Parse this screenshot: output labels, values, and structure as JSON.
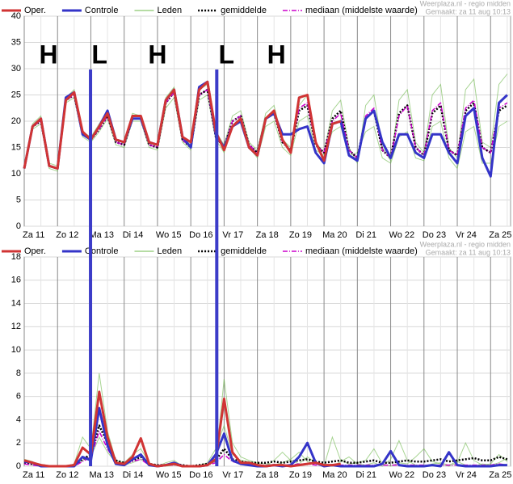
{
  "front_lines": {
    "color": "#3c3cc8",
    "x": [
      1.99,
      5.78
    ]
  },
  "chart_data": [
    {
      "type": "line",
      "watermark": [
        "Weerplaza.nl - regio midden",
        "Gemaakt: za 11 aug 10:13"
      ],
      "annotations": [
        {
          "text": "H",
          "x": 0.73,
          "y": 32.3
        },
        {
          "text": "L",
          "x": 2.26,
          "y": 32.3
        },
        {
          "text": "H",
          "x": 4.0,
          "y": 32.3
        },
        {
          "text": "L",
          "x": 6.07,
          "y": 32.3
        },
        {
          "text": "H",
          "x": 7.57,
          "y": 32.3
        }
      ],
      "x": [
        0,
        0.25,
        0.5,
        0.75,
        1,
        1.25,
        1.5,
        1.75,
        2,
        2.25,
        2.5,
        2.75,
        3,
        3.25,
        3.5,
        3.75,
        4,
        4.25,
        4.5,
        4.75,
        5,
        5.25,
        5.5,
        5.75,
        6,
        6.25,
        6.5,
        6.75,
        7,
        7.25,
        7.5,
        7.75,
        8,
        8.25,
        8.5,
        8.75,
        9,
        9.25,
        9.5,
        9.75,
        10,
        10.25,
        10.5,
        10.75,
        11,
        11.25,
        11.5,
        11.75,
        12,
        12.25,
        12.5,
        12.75,
        13,
        13.25,
        13.5,
        13.75,
        14,
        14.25,
        14.5
      ],
      "xlim": [
        0,
        14.6
      ],
      "xticks": [
        {
          "value": 0,
          "label": "Za 11"
        },
        {
          "value": 1,
          "label": "Zo 12"
        },
        {
          "value": 2,
          "label": "Ma 13"
        },
        {
          "value": 3,
          "label": "Di 14"
        },
        {
          "value": 4,
          "label": "Wo 15"
        },
        {
          "value": 5,
          "label": "Do 16"
        },
        {
          "value": 6,
          "label": "Vr 17"
        },
        {
          "value": 7,
          "label": "Za 18"
        },
        {
          "value": 8,
          "label": "Zo 19"
        },
        {
          "value": 9,
          "label": "Ma 20"
        },
        {
          "value": 10,
          "label": "Di 21"
        },
        {
          "value": 11,
          "label": "Wo 22"
        },
        {
          "value": 12,
          "label": "Do 23"
        },
        {
          "value": 13,
          "label": "Vr 24"
        },
        {
          "value": 14,
          "label": "Za 25"
        }
      ],
      "ylim": [
        0,
        40
      ],
      "yticks": [
        0,
        5,
        10,
        15,
        20,
        25,
        30,
        35,
        40
      ],
      "grid": true,
      "series": [
        {
          "name": "Oper.",
          "color": "#d03434",
          "values": [
            11,
            19,
            20.5,
            11.5,
            11,
            24,
            25.5,
            18,
            16.5,
            19,
            21.5,
            16.5,
            16,
            21,
            21,
            16,
            15.5,
            24,
            26,
            17,
            16,
            26,
            27.5,
            18,
            14.5,
            19,
            20.5,
            15,
            13.5,
            20.5,
            22,
            16.5,
            14,
            24.5,
            25,
            16,
            12.5,
            19.5,
            20,
            null,
            null,
            null,
            null,
            null,
            null,
            null,
            null,
            null,
            null,
            null,
            null,
            null,
            null,
            null,
            null,
            null,
            null,
            null,
            null
          ]
        },
        {
          "name": "Controle",
          "color": "#3434c8",
          "values": [
            11,
            19,
            20.5,
            11.5,
            11,
            24.5,
            25.5,
            17.5,
            16.5,
            19,
            22,
            16.5,
            16,
            20.5,
            20.5,
            16,
            15.5,
            24,
            26,
            17,
            15,
            26.5,
            27.5,
            17.5,
            15,
            19,
            20,
            15,
            13.5,
            20.5,
            21.5,
            17.5,
            17.5,
            18.5,
            19,
            14,
            12,
            19.5,
            20,
            13.5,
            12.5,
            20.5,
            22,
            16,
            13,
            17.5,
            17.5,
            14,
            13,
            17.5,
            17.5,
            14,
            12,
            21,
            22.5,
            13,
            9.5,
            23.5,
            25
          ]
        },
        {
          "name": "Leden",
          "color": "#6cb84a",
          "members": [
            [
              11,
              19.5,
              21,
              12,
              11.5,
              24.5,
              26,
              18,
              17,
              19.5,
              22,
              16.5,
              16,
              21.5,
              21,
              16,
              15.5,
              24.5,
              26.5,
              17,
              15.5,
              26,
              27,
              18,
              15.5,
              21,
              22,
              16,
              14.5,
              21.5,
              23,
              16.5,
              15,
              23,
              25,
              16,
              14,
              22,
              24,
              15,
              12,
              23,
              25,
              15,
              12.5,
              24,
              26,
              16,
              14,
              25,
              27,
              15,
              13,
              26,
              28,
              16,
              15,
              27,
              29
            ],
            [
              11,
              18.5,
              19.5,
              11,
              10.5,
              23.5,
              24.5,
              17,
              16,
              18,
              20.5,
              15.5,
              15,
              20,
              20,
              15,
              14.5,
              22.5,
              24.5,
              16,
              14.5,
              24,
              25,
              16.5,
              14,
              19,
              20,
              15,
              13,
              19,
              20,
              15,
              13.5,
              20,
              21,
              14.5,
              13.5,
              18,
              19,
              13.5,
              14,
              18,
              19,
              13,
              12,
              17,
              18,
              13,
              12.5,
              19,
              20,
              13,
              11,
              18,
              19,
              12,
              12,
              19,
              20
            ]
          ]
        },
        {
          "name": "gemiddelde",
          "color": "#000000",
          "values": [
            11,
            19,
            20,
            11.5,
            11,
            24,
            25,
            17.5,
            16.5,
            18.5,
            21,
            16,
            15.5,
            20.5,
            20.5,
            15.5,
            15,
            23.5,
            25.5,
            16.5,
            15,
            25,
            26,
            17,
            15,
            20,
            21,
            15.5,
            14,
            20.5,
            21.5,
            16,
            14.5,
            22,
            23,
            15.5,
            14,
            20.5,
            22,
            14.5,
            13,
            20.5,
            22,
            14.5,
            13,
            21.5,
            23,
            15,
            13.5,
            21.5,
            23,
            14.5,
            13.5,
            22,
            23.5,
            15,
            14,
            22,
            23
          ]
        },
        {
          "name": "mediaan (middelste waarde)",
          "color": "#cc00cc",
          "values": [
            11,
            19,
            20,
            11.5,
            11,
            24,
            25,
            17.5,
            16.5,
            18.5,
            21,
            16,
            15.5,
            20.5,
            20.5,
            15.5,
            15,
            23.5,
            25.5,
            16.5,
            15,
            25,
            26,
            17,
            15,
            20,
            21,
            15.5,
            14,
            20.5,
            21.5,
            16,
            14.5,
            22.5,
            23.5,
            15.5,
            14,
            20,
            21.5,
            14.5,
            13,
            21,
            22.5,
            14.5,
            13,
            21,
            23,
            15,
            13.5,
            22,
            23.5,
            14.5,
            13.5,
            22.5,
            24,
            15,
            14,
            22.5,
            23.5
          ]
        }
      ]
    },
    {
      "type": "line",
      "watermark": [
        "Weerplaza.nl - regio midden",
        "Gemaakt: za 11 aug 10:13"
      ],
      "x": [
        0,
        0.25,
        0.5,
        0.75,
        1,
        1.25,
        1.5,
        1.75,
        2,
        2.25,
        2.5,
        2.75,
        3,
        3.25,
        3.5,
        3.75,
        4,
        4.25,
        4.5,
        4.75,
        5,
        5.25,
        5.5,
        5.75,
        6,
        6.25,
        6.5,
        6.75,
        7,
        7.25,
        7.5,
        7.75,
        8,
        8.25,
        8.5,
        8.75,
        9,
        9.25,
        9.5,
        9.75,
        10,
        10.25,
        10.5,
        10.75,
        11,
        11.25,
        11.5,
        11.75,
        12,
        12.25,
        12.5,
        12.75,
        13,
        13.25,
        13.5,
        13.75,
        14,
        14.25,
        14.5
      ],
      "xlim": [
        0,
        14.6
      ],
      "xticks": [
        {
          "value": 0,
          "label": "Za 11"
        },
        {
          "value": 1,
          "label": "Zo 12"
        },
        {
          "value": 2,
          "label": "Ma 13"
        },
        {
          "value": 3,
          "label": "Di 14"
        },
        {
          "value": 4,
          "label": "Wo 15"
        },
        {
          "value": 5,
          "label": "Do 16"
        },
        {
          "value": 6,
          "label": "Vr 17"
        },
        {
          "value": 7,
          "label": "Za 18"
        },
        {
          "value": 8,
          "label": "Zo 19"
        },
        {
          "value": 9,
          "label": "Ma 20"
        },
        {
          "value": 10,
          "label": "Di 21"
        },
        {
          "value": 11,
          "label": "Wo 22"
        },
        {
          "value": 12,
          "label": "Do 23"
        },
        {
          "value": 13,
          "label": "Vr 24"
        },
        {
          "value": 14,
          "label": "Za 25"
        }
      ],
      "ylim": [
        0,
        18
      ],
      "yticks": [
        0,
        2,
        4,
        6,
        8,
        10,
        12,
        14,
        16,
        18
      ],
      "grid": true,
      "series": [
        {
          "name": "Oper.",
          "color": "#d03434",
          "values": [
            0.5,
            0.3,
            0.1,
            0,
            0,
            0,
            0.1,
            1.6,
            1.0,
            6.4,
            2.5,
            0.3,
            0.2,
            0.8,
            2.4,
            0.2,
            0,
            0.1,
            0.2,
            0,
            0,
            0,
            0.1,
            0.6,
            5.8,
            1.2,
            0.3,
            0.3,
            0.1,
            0,
            0.1,
            0.1,
            0,
            0.1,
            0.2,
            0.3,
            0.1,
            0.1,
            0.2,
            null,
            null,
            null,
            null,
            null,
            null,
            null,
            null,
            null,
            null,
            null,
            null,
            null,
            null,
            null,
            null,
            null,
            null,
            null,
            null
          ]
        },
        {
          "name": "Controle",
          "color": "#3434c8",
          "values": [
            0.4,
            0.3,
            0,
            0,
            0,
            0,
            0,
            0.8,
            0.5,
            5.0,
            1.8,
            0.2,
            0.1,
            0.6,
            1.0,
            0.1,
            0,
            0.1,
            0.3,
            0,
            0,
            0,
            0.1,
            1.0,
            2.8,
            0.5,
            0.2,
            0.1,
            0,
            0,
            0.1,
            0,
            0.1,
            0.8,
            2.0,
            0.3,
            0,
            0.1,
            0,
            0,
            0,
            0,
            0,
            0.2,
            1.3,
            0.1,
            0,
            0,
            0,
            0.1,
            0,
            1.2,
            0.1,
            0,
            0,
            0,
            0,
            0.1,
            0.1
          ]
        },
        {
          "name": "Leden",
          "color": "#6cb84a",
          "members": [
            [
              0.6,
              0.4,
              0,
              0,
              0,
              0,
              0.2,
              2.5,
              1.5,
              8.0,
              3,
              0.5,
              0.3,
              1.0,
              1.5,
              0.3,
              0,
              0.3,
              0.5,
              0,
              0,
              0.1,
              0.3,
              1.5,
              3.5,
              1.0,
              0.5,
              0.4,
              0.2,
              0,
              0.5,
              1.2,
              0.5,
              0.2,
              0.8,
              0.3,
              0,
              2.5,
              0.5,
              0.2,
              0.3,
              0.5,
              1.5,
              0.2,
              0,
              0.3,
              0.2,
              0.8,
              1.5,
              0.4,
              0.2,
              0,
              0.3,
              2.0,
              0.5,
              0.1,
              0.2,
              1.0,
              0.4
            ],
            [
              0.2,
              0.1,
              0,
              0,
              0,
              0,
              0,
              0.5,
              0.8,
              2.5,
              1.2,
              0.3,
              0.1,
              0.3,
              0.6,
              0.1,
              0,
              0,
              0.1,
              0,
              0,
              0,
              0.1,
              0.4,
              7.5,
              2.0,
              0.8,
              0.5,
              0.3,
              0.2,
              0.1,
              0.3,
              0.6,
              1.2,
              0.4,
              0.2,
              0.1,
              0,
              0.4,
              0.8,
              0.2,
              0.1,
              0.3,
              0,
              0.6,
              2.2,
              0.5,
              0.1,
              0,
              0.2,
              0.3,
              0.1,
              0.4,
              0.1,
              0,
              0.2,
              0.1,
              0.3,
              0.7
            ]
          ]
        },
        {
          "name": "gemiddelde",
          "color": "#000000",
          "values": [
            0.3,
            0.2,
            0.1,
            0,
            0,
            0,
            0.1,
            0.6,
            1,
            3.5,
            2,
            0.5,
            0.3,
            0.5,
            0.8,
            0.2,
            0.1,
            0.1,
            0.2,
            0.1,
            0,
            0.1,
            0.2,
            0.5,
            1.5,
            0.6,
            0.4,
            0.3,
            0.3,
            0.3,
            0.4,
            0.3,
            0.4,
            0.5,
            0.6,
            0.4,
            0.3,
            0.4,
            0.5,
            0.3,
            0.3,
            0.4,
            0.5,
            0.3,
            0.3,
            0.4,
            0.5,
            0.4,
            0.4,
            0.5,
            0.6,
            0.4,
            0.5,
            0.6,
            0.7,
            0.5,
            0.5,
            0.8,
            0.6
          ]
        },
        {
          "name": "mediaan (middelste waarde)",
          "color": "#cc00cc",
          "values": [
            0.2,
            0.1,
            0,
            0,
            0,
            0,
            0,
            0.4,
            0.8,
            3.0,
            1.5,
            0.3,
            0.2,
            0.4,
            0.6,
            0.1,
            0,
            0.1,
            0.1,
            0,
            0,
            0,
            0.1,
            0.3,
            1.0,
            0.4,
            0.2,
            0.1,
            0.1,
            0.1,
            0.1,
            0.1,
            0.1,
            0.2,
            0.2,
            0.1,
            0.1,
            0.1,
            0.1,
            0.1,
            0.1,
            0.1,
            0.1,
            0.1,
            0.1,
            0.1,
            0.1,
            0.1,
            0.1,
            0.1,
            0.1,
            0.1,
            0.1,
            0.1,
            0.1,
            0.1,
            0.1,
            0.2,
            0.1
          ]
        }
      ]
    }
  ]
}
